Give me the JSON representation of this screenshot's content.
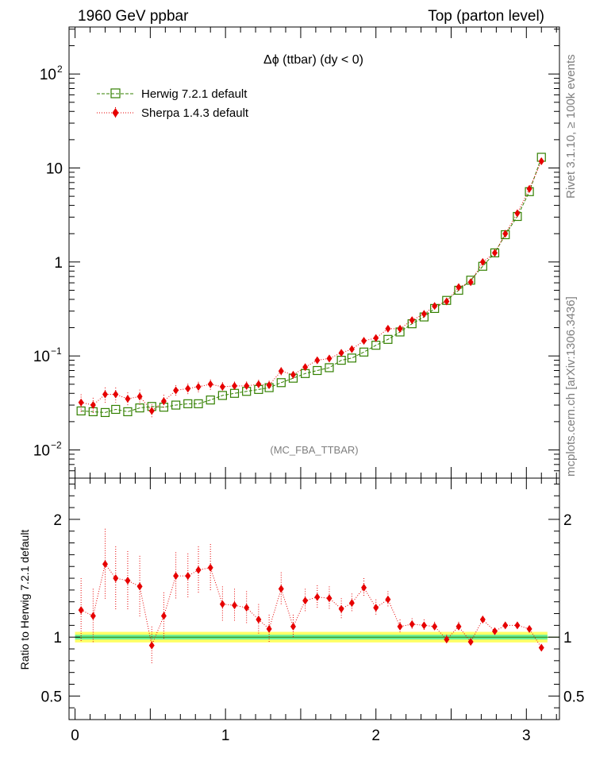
{
  "header": {
    "left": "1960 GeV ppbar",
    "right": "Top (parton level)"
  },
  "side_text": {
    "upper": "Rivet 3.1.10, ≥ 100k events",
    "lower": "mcplots.cern.ch [arXiv:1306.3436]"
  },
  "analysis_tag": "(MC_FBA_TTBAR)",
  "colors": {
    "herwig": "#338000",
    "sherpa": "#e60000",
    "band_inner": "#66ee99",
    "band_outer": "#ffff66"
  },
  "chart_data": [
    {
      "type": "scatter",
      "title": "Δϕ (ttbar) (dy < 0)",
      "xlim": [
        -0.04,
        3.22
      ],
      "ylim_log10": [
        -2.3,
        2.5
      ],
      "log_y": true,
      "y_ticks": [
        {
          "value": 0.01,
          "label": "10",
          "sup": "−2"
        },
        {
          "value": 0.1,
          "label": "10",
          "sup": "−1"
        },
        {
          "value": 1,
          "label": "1",
          "sup": ""
        },
        {
          "value": 10,
          "label": "10",
          "sup": ""
        },
        {
          "value": 100,
          "label": "10",
          "sup": "2"
        }
      ],
      "legend": {
        "placement": "top-left",
        "entries": [
          "Herwig 7.2.1 default",
          "Sherpa 1.4.3 default"
        ]
      },
      "x": [
        0.04,
        0.12,
        0.2,
        0.27,
        0.35,
        0.43,
        0.51,
        0.59,
        0.67,
        0.75,
        0.82,
        0.9,
        0.98,
        1.06,
        1.14,
        1.22,
        1.29,
        1.37,
        1.45,
        1.53,
        1.61,
        1.69,
        1.77,
        1.84,
        1.92,
        2.0,
        2.08,
        2.16,
        2.24,
        2.32,
        2.39,
        2.47,
        2.55,
        2.63,
        2.71,
        2.79,
        2.86,
        2.94,
        3.02,
        3.1
      ],
      "series": [
        {
          "name": "Herwig 7.2.1 default",
          "values": [
            0.026,
            0.0255,
            0.025,
            0.027,
            0.0255,
            0.028,
            0.029,
            0.0285,
            0.03,
            0.031,
            0.031,
            0.034,
            0.038,
            0.04,
            0.042,
            0.044,
            0.046,
            0.052,
            0.058,
            0.065,
            0.07,
            0.075,
            0.09,
            0.095,
            0.11,
            0.13,
            0.15,
            0.18,
            0.22,
            0.26,
            0.32,
            0.39,
            0.5,
            0.64,
            0.9,
            1.25,
            1.95,
            3.05,
            5.6,
            13.0
          ]
        },
        {
          "name": "Sherpa 1.4.3 default",
          "values": [
            0.032,
            0.03,
            0.039,
            0.039,
            0.035,
            0.037,
            0.026,
            0.033,
            0.043,
            0.045,
            0.047,
            0.05,
            0.047,
            0.048,
            0.048,
            0.05,
            0.049,
            0.069,
            0.063,
            0.076,
            0.09,
            0.094,
            0.108,
            0.118,
            0.145,
            0.155,
            0.195,
            0.195,
            0.24,
            0.28,
            0.34,
            0.38,
            0.54,
            0.61,
            1.0,
            1.25,
            2.0,
            3.3,
            6.0,
            11.8
          ]
        }
      ]
    },
    {
      "type": "scatter",
      "ylabel": "Ratio to Herwig 7.2.1 default",
      "xlim": [
        -0.04,
        3.22
      ],
      "ylim": [
        0.3,
        2.35
      ],
      "x_ticks": [
        0,
        1,
        2,
        3
      ],
      "y_ticks": [
        0.5,
        1,
        2
      ],
      "reference": 1,
      "band_inner": 0.02,
      "band_outer": 0.045,
      "series": [
        {
          "name": "Sherpa 1.4.3 default",
          "values": [
            1.23,
            1.18,
            1.62,
            1.5,
            1.48,
            1.43,
            0.93,
            1.18,
            1.52,
            1.52,
            1.57,
            1.59,
            1.28,
            1.27,
            1.25,
            1.15,
            1.07,
            1.41,
            1.09,
            1.31,
            1.34,
            1.33,
            1.24,
            1.29,
            1.42,
            1.25,
            1.32,
            1.09,
            1.11,
            1.1,
            1.09,
            0.98,
            1.09,
            0.96,
            1.15,
            1.05,
            1.1,
            1.1,
            1.07,
            0.91
          ],
          "err": [
            0.27,
            0.23,
            0.3,
            0.27,
            0.25,
            0.26,
            0.16,
            0.2,
            0.2,
            0.19,
            0.2,
            0.2,
            0.15,
            0.14,
            0.14,
            0.13,
            0.12,
            0.14,
            0.1,
            0.1,
            0.1,
            0.1,
            0.09,
            0.08,
            0.08,
            0.07,
            0.07,
            0.06,
            0.05,
            0.05,
            0.04,
            0.04,
            0.04,
            0.03,
            0.03,
            0.02,
            0.02,
            0.02,
            0.015,
            0.01
          ]
        }
      ]
    }
  ]
}
